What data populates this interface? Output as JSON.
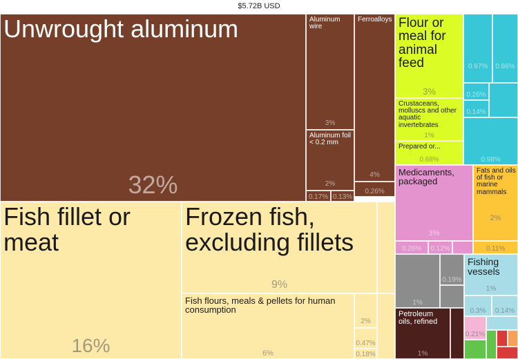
{
  "chart_data": {
    "type": "treemap",
    "title": "$5.72B USD",
    "items": [
      {
        "label": "Unwrought aluminum",
        "value": 32,
        "value_label": "32%",
        "color": "#763f2a",
        "group": "metals"
      },
      {
        "label": "Aluminum wire",
        "value": 3,
        "value_label": "3%",
        "color": "#763f2a",
        "group": "metals"
      },
      {
        "label": "Ferroalloys",
        "value": 4,
        "value_label": "4%",
        "color": "#763f2a",
        "group": "metals"
      },
      {
        "label": "Aluminum foil < 0.2 mm",
        "value": 2,
        "value_label": "2%",
        "color": "#763f2a",
        "group": "metals"
      },
      {
        "label": "",
        "value": 0.17,
        "value_label": "0.17%",
        "color": "#763f2a",
        "group": "metals"
      },
      {
        "label": "",
        "value": 0.13,
        "value_label": "0.13%",
        "color": "#763f2a",
        "group": "metals"
      },
      {
        "label": "",
        "value": 0.26,
        "value_label": "0.26%",
        "color": "#763f2a",
        "group": "metals"
      },
      {
        "label": "Fish fillet or meat",
        "value": 16,
        "value_label": "16%",
        "color": "#fde9a8",
        "group": "animal products"
      },
      {
        "label": "Frozen fish, excluding fillets",
        "value": 9,
        "value_label": "9%",
        "color": "#fde9a8",
        "group": "animal products"
      },
      {
        "label": "Fish flours, meals & pellets for human consumption",
        "value": 6,
        "value_label": "6%",
        "color": "#fde9a8",
        "group": "animal products"
      },
      {
        "label": "",
        "value": 2,
        "value_label": "2%",
        "color": "#fde9a8",
        "group": "animal products"
      },
      {
        "label": "",
        "value": 0.47,
        "value_label": "0.47%",
        "color": "#fde9a8",
        "group": "animal products"
      },
      {
        "label": "",
        "value": 0.18,
        "value_label": "0.18%",
        "color": "#fde9a8",
        "group": "animal products"
      },
      {
        "label": "Flour or meal for animal feed",
        "value": 3,
        "value_label": "3%",
        "color": "#dcfc25",
        "group": "foodstuffs"
      },
      {
        "label": "Crustaceans, molluscs and other aquatic invertebrates",
        "value": 1,
        "value_label": "1%",
        "color": "#dcfc25",
        "group": "foodstuffs"
      },
      {
        "label": "Prepared or...",
        "value": 0.68,
        "value_label": "0.68%",
        "color": "#dcfc25",
        "group": "foodstuffs"
      },
      {
        "label": "",
        "value": 0.97,
        "value_label": "0.97%",
        "color": "#38c7d6",
        "group": "machinery"
      },
      {
        "label": "",
        "value": 0.86,
        "value_label": "0.86%",
        "color": "#38c7d6",
        "group": "machinery"
      },
      {
        "label": "",
        "value": 0.26,
        "value_label": "0.26%",
        "color": "#38c7d6",
        "group": "machinery"
      },
      {
        "label": "",
        "value": 0.14,
        "value_label": "0.14%",
        "color": "#38c7d6",
        "group": "machinery"
      },
      {
        "label": "",
        "value": 0.98,
        "value_label": "0.98%",
        "color": "#38c7d6",
        "group": "machinery"
      },
      {
        "label": "Medicaments, packaged",
        "value": 3,
        "value_label": "3%",
        "color": "#e493cf",
        "group": "chemicals"
      },
      {
        "label": "",
        "value": 0.26,
        "value_label": "0.26%",
        "color": "#e493cf",
        "group": "chemicals"
      },
      {
        "label": "",
        "value": 0.12,
        "value_label": "0.12%",
        "color": "#e493cf",
        "group": "chemicals"
      },
      {
        "label": "Fats and oils of fish or marine mammals",
        "value": 2,
        "value_label": "2%",
        "color": "#fdc538",
        "group": "fats"
      },
      {
        "label": "",
        "value": 0.11,
        "value_label": "0.11%",
        "color": "#fdc538",
        "group": "fats"
      },
      {
        "label": "",
        "value": 1,
        "value_label": "1%",
        "color": "#8c8c8c",
        "group": "instruments"
      },
      {
        "label": "",
        "value": 0.19,
        "value_label": "0.19%",
        "color": "#8c8c8c",
        "group": "instruments"
      },
      {
        "label": "Fishing vessels",
        "value": 1,
        "value_label": "1%",
        "color": "#a8dde8",
        "group": "transportation"
      },
      {
        "label": "",
        "value": 0.3,
        "value_label": "0.3%",
        "color": "#a8dde8",
        "group": "transportation"
      },
      {
        "label": "",
        "value": 0.14,
        "value_label": "0.14%",
        "color": "#a8dde8",
        "group": "transportation"
      },
      {
        "label": "Petroleum oils, refined",
        "value": 1,
        "value_label": "1%",
        "color": "#4b1f1c",
        "group": "mineral products"
      },
      {
        "label": "",
        "value": 0.21,
        "value_label": "0.21%",
        "color": "#f4b6d4",
        "group": "textiles"
      }
    ]
  }
}
